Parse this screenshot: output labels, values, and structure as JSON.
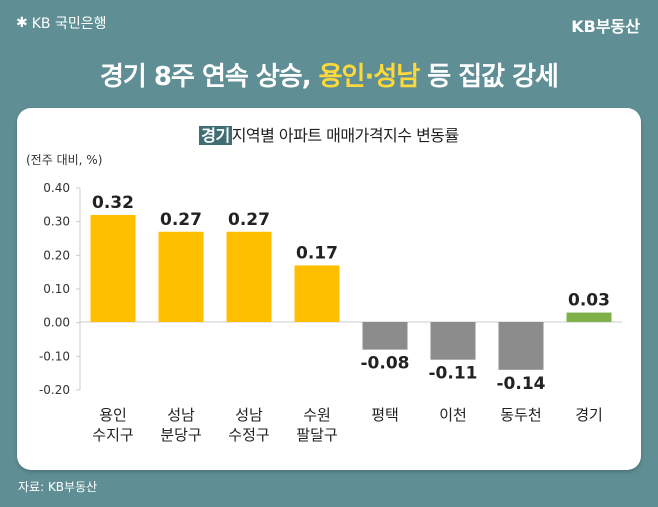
{
  "header": {
    "bank_logo": "KB 국민은행",
    "brand": "KB부동산"
  },
  "headline": {
    "part1": "경기 8주 연속 상승, ",
    "highlight": "용인·성남",
    "part2": " 등 집값 강세"
  },
  "source": "자료: KB부동산",
  "colors": {
    "background": "#5f8f95",
    "positive": "#ffbf00",
    "negative": "#8c8c8c",
    "total": "#7fb04a",
    "headline_highlight": "#ffd93a"
  },
  "chart_data": {
    "type": "bar",
    "title_tag": "경기",
    "title": "지역별 아파트 매매가격지수 변동률",
    "ylabel": "(전주 대비, %)",
    "categories": [
      [
        "용인",
        "수지구"
      ],
      [
        "성남",
        "분당구"
      ],
      [
        "성남",
        "수정구"
      ],
      [
        "수원",
        "팔달구"
      ],
      [
        "평택"
      ],
      [
        "이천"
      ],
      [
        "동두천"
      ],
      [
        "경기"
      ]
    ],
    "values": [
      0.32,
      0.27,
      0.27,
      0.17,
      -0.08,
      -0.11,
      -0.14,
      0.03
    ],
    "value_labels": [
      "0.32",
      "0.27",
      "0.27",
      "0.17",
      "-0.08",
      "-0.11",
      "-0.14",
      "0.03"
    ],
    "yticks": [
      "0.40",
      "0.30",
      "0.20",
      "0.10",
      "0.00",
      "-0.10",
      "-0.20"
    ],
    "ylim": [
      -0.2,
      0.4
    ],
    "grid": false
  }
}
